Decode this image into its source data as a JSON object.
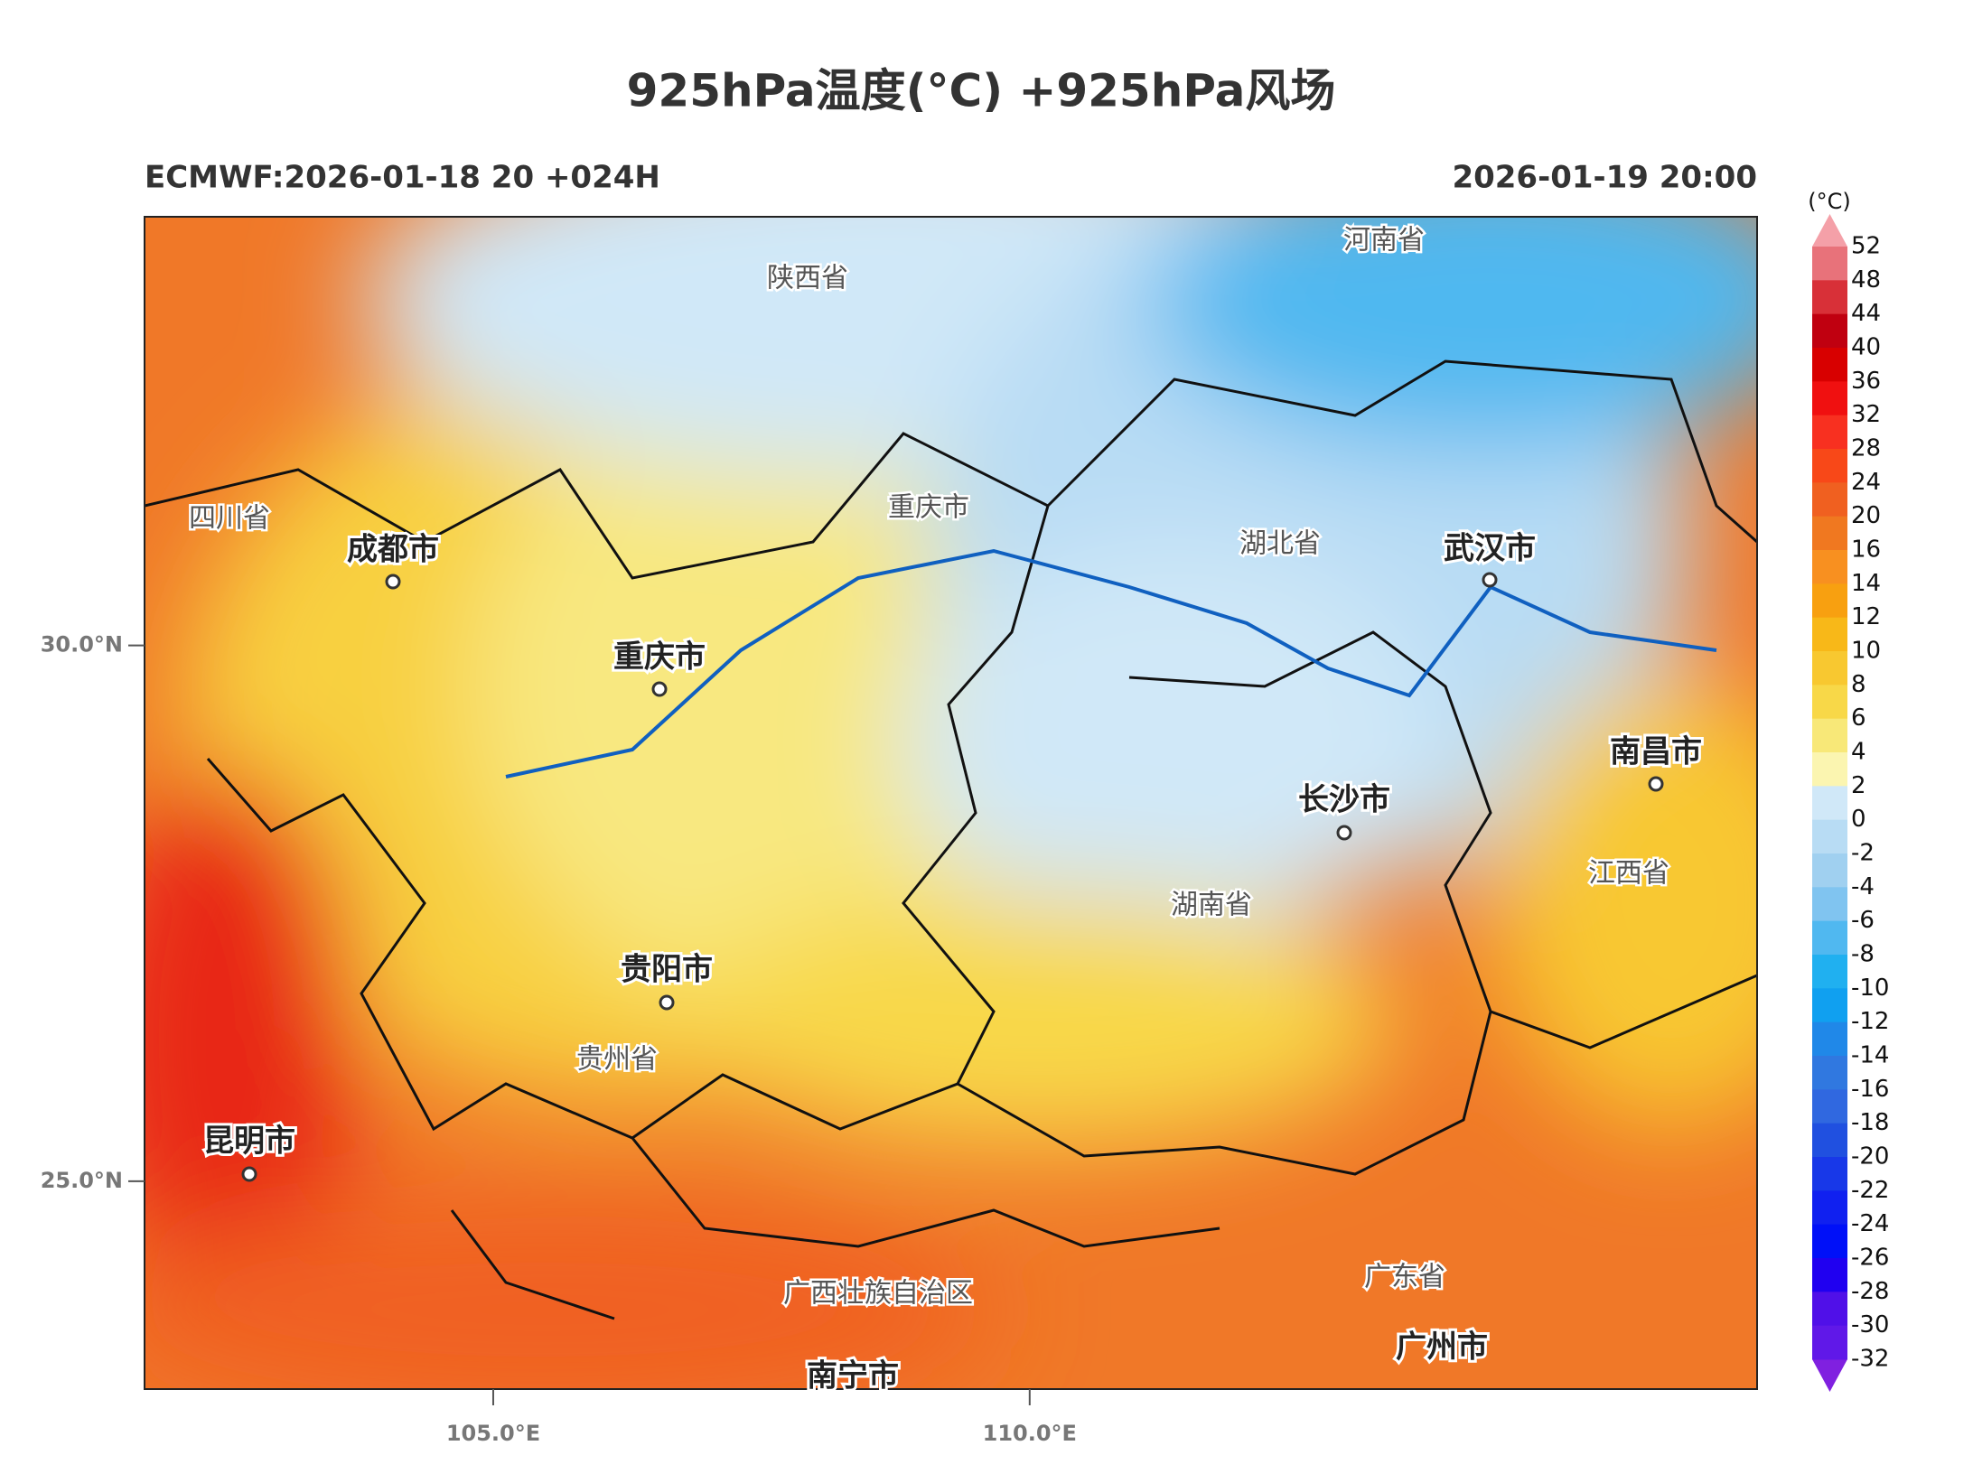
{
  "header": {
    "title": "925hPa温度(°C) +925hPa风场",
    "left": "ECMWF:2026-01-18 20 +024H",
    "right": "2026-01-19 20:00"
  },
  "map": {
    "lon_range": [
      101.75,
      116.78
    ],
    "lat_range": [
      23.06,
      34.0
    ],
    "lon_ticks": [
      {
        "value": 105,
        "label": "105.0°E"
      },
      {
        "value": 110,
        "label": "110.0°E"
      }
    ],
    "lat_ticks": [
      {
        "value": 30,
        "label": "30.0°N"
      },
      {
        "value": 25,
        "label": "25.0°N"
      }
    ],
    "places": [
      "陕西省",
      "河南省",
      "四川省",
      "成都市",
      "重庆市",
      "重庆市",
      "湖北省",
      "武汉市",
      "南昌市",
      "长沙市",
      "江西省",
      "湖南省",
      "贵阳市",
      "贵州省",
      "昆明市",
      "广西壮族自治区",
      "广东省",
      "广州市",
      "南宁市"
    ]
  },
  "colorbar": {
    "unit": "(°C)",
    "levels": [
      52,
      48,
      44,
      40,
      36,
      32,
      28,
      24,
      20,
      16,
      14,
      12,
      10,
      8,
      6,
      4,
      2,
      0,
      -2,
      -4,
      -6,
      -8,
      -10,
      -12,
      -14,
      -16,
      -18,
      -20,
      -22,
      -24,
      -26,
      -28,
      -30,
      -32
    ],
    "colors": [
      "#e8727a",
      "#d83038",
      "#c00010",
      "#d80000",
      "#f01010",
      "#f83020",
      "#f84818",
      "#f06020",
      "#f07820",
      "#f89020",
      "#f8a010",
      "#f8b818",
      "#f8c830",
      "#f8d848",
      "#f8e878",
      "#fbf5b0",
      "#d0e8f8",
      "#b8dcf4",
      "#a0d0f0",
      "#80c4f0",
      "#50b8f0",
      "#20b0f0",
      "#10a0f0",
      "#2088e8",
      "#3078e0",
      "#3068e0",
      "#2050e0",
      "#1838e8",
      "#1020f0",
      "#0010f8",
      "#2000f0",
      "#5010e8",
      "#6018e8"
    ],
    "over_color": "#f4a0a8",
    "under_color": "#8020e0"
  }
}
